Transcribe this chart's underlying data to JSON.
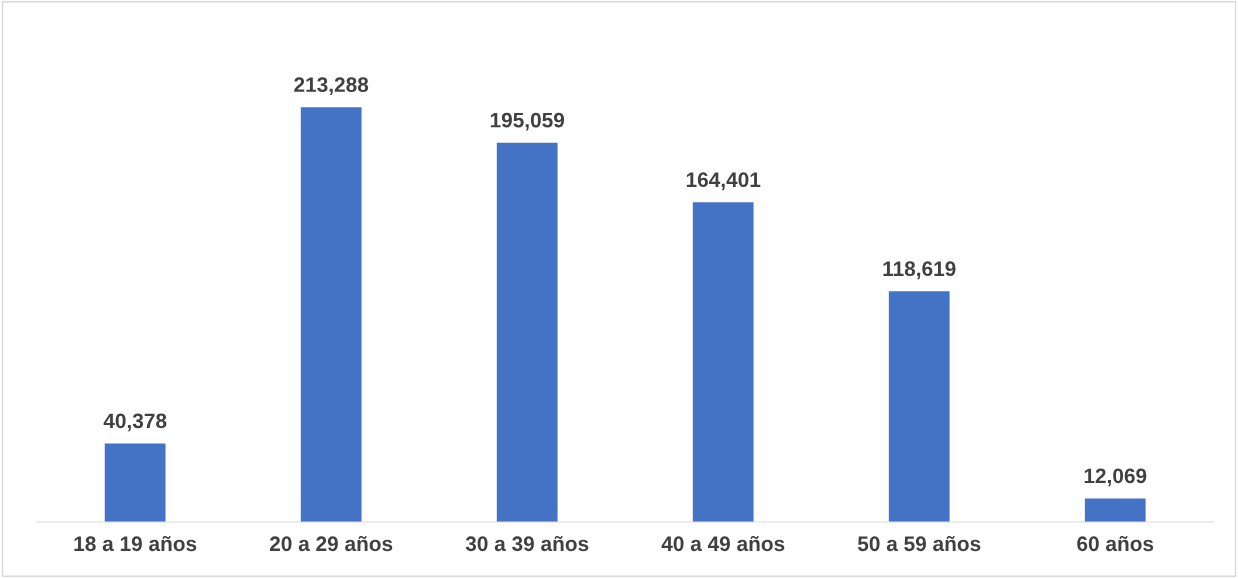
{
  "chart_data": {
    "type": "bar",
    "categories": [
      "18 a 19 años",
      "20 a 29 años",
      "30 a 39 años",
      "40 a 49 años",
      "50 a 59 años",
      "60 años"
    ],
    "values": [
      40378,
      213288,
      195059,
      164401,
      118619,
      12069
    ],
    "value_labels": [
      "40,378",
      "213,288",
      "195,059",
      "164,401",
      "118,619",
      "12,069"
    ],
    "color": "#4472c4",
    "grid": false,
    "legend": false,
    "tick_labels": "x"
  }
}
